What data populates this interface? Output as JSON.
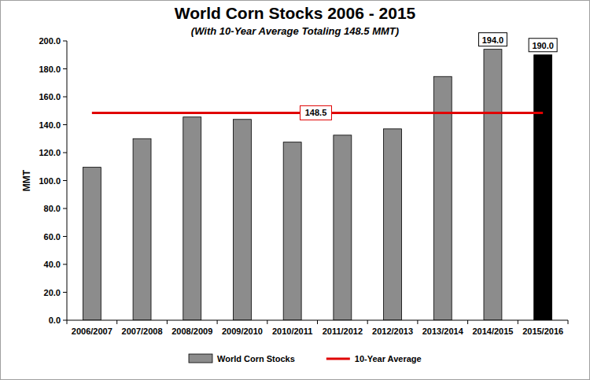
{
  "chart_data": {
    "type": "bar",
    "title": "World Corn Stocks 2006 - 2015",
    "subtitle": "(With 10-Year Average Totaling 148.5 MMT)",
    "y_label": "MMT",
    "categories": [
      "2006/2007",
      "2007/2008",
      "2008/2009",
      "2009/2010",
      "2010/2011",
      "2011/2012",
      "2012/2013",
      "2013/2014",
      "2014/2015",
      "2015/2016"
    ],
    "series": [
      {
        "name": "World Corn Stocks",
        "type": "bar",
        "values": [
          109.5,
          130.0,
          145.5,
          143.8,
          127.5,
          132.5,
          137.0,
          174.5,
          194.0,
          190.0
        ],
        "colors": [
          "#8c8c8c",
          "#8c8c8c",
          "#8c8c8c",
          "#8c8c8c",
          "#8c8c8c",
          "#8c8c8c",
          "#8c8c8c",
          "#8c8c8c",
          "#8c8c8c",
          "#000000"
        ],
        "data_labels": true,
        "value_labels": [
          null,
          null,
          null,
          null,
          null,
          null,
          null,
          null,
          "194.0",
          "190.0"
        ]
      },
      {
        "name": "10-Year Average",
        "type": "line",
        "color": "#e00000",
        "values": [
          148.5,
          148.5,
          148.5,
          148.5,
          148.5,
          148.5,
          148.5,
          148.5,
          148.5,
          148.5
        ]
      }
    ],
    "annotations": [
      {
        "text": "148.5",
        "y": 148.5
      }
    ],
    "ylim": [
      0,
      200
    ],
    "yticks": [
      {
        "value": 0,
        "label": "0.0"
      },
      {
        "value": 20,
        "label": "20.0"
      },
      {
        "value": 40,
        "label": "40.0"
      },
      {
        "value": 60,
        "label": "60.0"
      },
      {
        "value": 80,
        "label": "80.0"
      },
      {
        "value": 100,
        "label": "100.0"
      },
      {
        "value": 120,
        "label": "120.0"
      },
      {
        "value": 140,
        "label": "140.0"
      },
      {
        "value": 160,
        "label": "160.0"
      },
      {
        "value": 180,
        "label": "180.0"
      },
      {
        "value": 200,
        "label": "200.0"
      }
    ],
    "grid": false,
    "legend": "bottom"
  }
}
